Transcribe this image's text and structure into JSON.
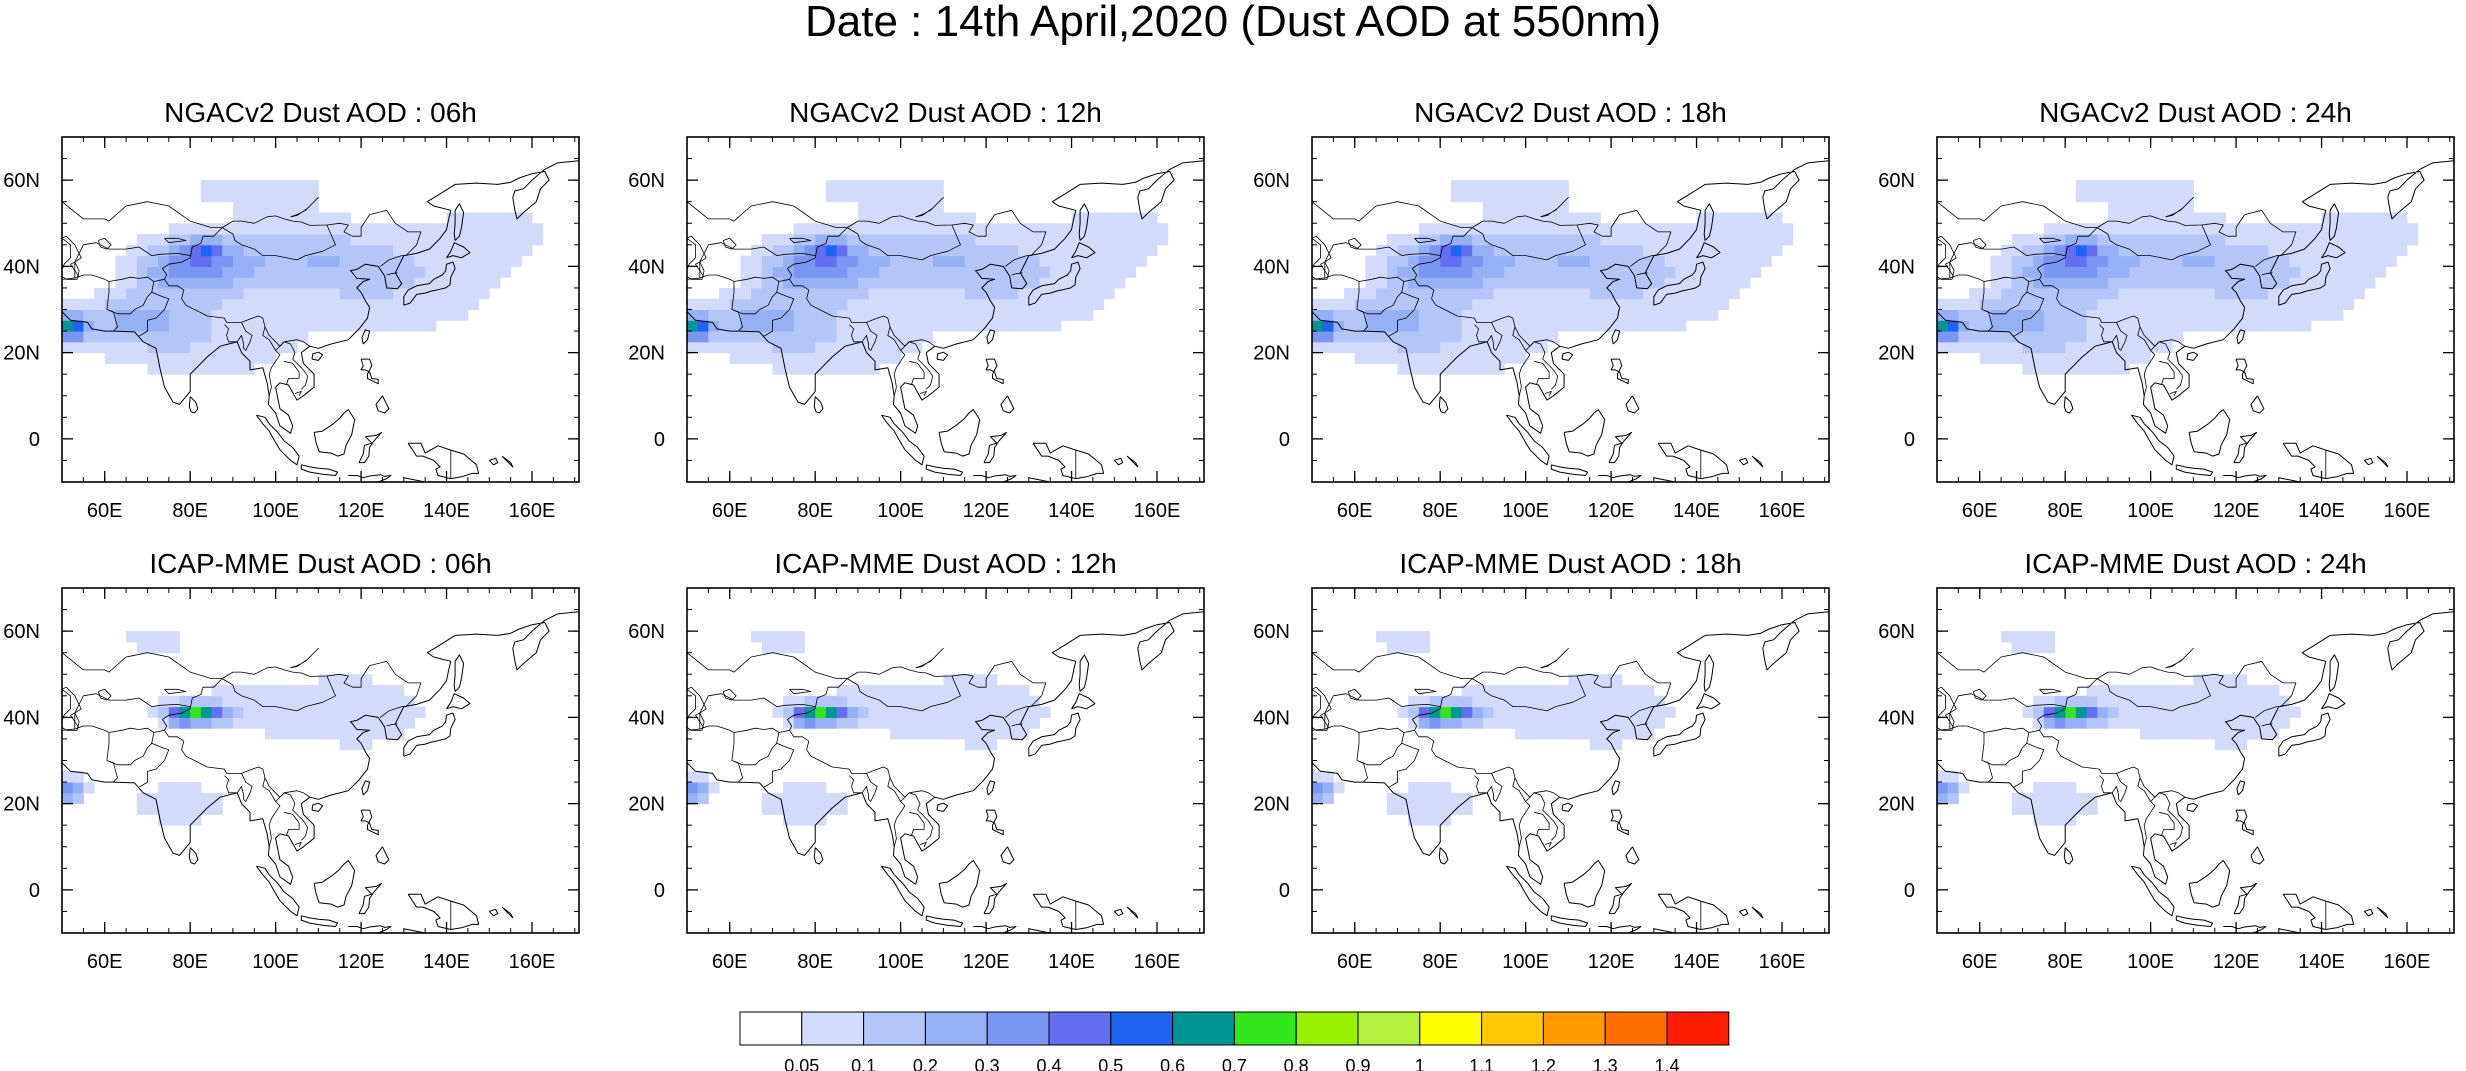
{
  "title": "Date : 14th April,2020 (Dust AOD at 550nm)",
  "panels": [
    {
      "title": "NGACv2 Dust AOD : 06h",
      "model": "NGACv2"
    },
    {
      "title": "NGACv2 Dust AOD : 12h",
      "model": "NGACv2"
    },
    {
      "title": "NGACv2 Dust AOD : 18h",
      "model": "NGACv2"
    },
    {
      "title": "NGACv2 Dust AOD : 24h",
      "model": "NGACv2"
    },
    {
      "title": "ICAP-MME Dust AOD : 06h",
      "model": "ICAP"
    },
    {
      "title": "ICAP-MME Dust AOD : 12h",
      "model": "ICAP"
    },
    {
      "title": "ICAP-MME Dust AOD : 18h",
      "model": "ICAP"
    },
    {
      "title": "ICAP-MME Dust AOD : 24h",
      "model": "ICAP"
    }
  ],
  "map": {
    "lon_range": [
      50,
      171
    ],
    "lat_range": [
      -10,
      70
    ],
    "lon_ticks": [
      {
        "value": 60,
        "label": "60E"
      },
      {
        "value": 80,
        "label": "80E"
      },
      {
        "value": 100,
        "label": "100E"
      },
      {
        "value": 120,
        "label": "120E"
      },
      {
        "value": 140,
        "label": "140E"
      },
      {
        "value": 160,
        "label": "160E"
      }
    ],
    "lat_ticks": [
      {
        "value": 0,
        "label": "0"
      },
      {
        "value": 20,
        "label": "20N"
      },
      {
        "value": 40,
        "label": "40N"
      },
      {
        "value": 60,
        "label": "60N"
      }
    ]
  },
  "colorbar": {
    "labels": [
      "0.05",
      "0.1",
      "0.2",
      "0.3",
      "0.4",
      "0.5",
      "0.6",
      "0.7",
      "0.8",
      "0.9",
      "1",
      "1.1",
      "1.2",
      "1.3",
      "1.4"
    ],
    "colors": [
      "#ffffff",
      "#d2dcfa",
      "#b4c6f8",
      "#96b0f5",
      "#7896f2",
      "#646ef0",
      "#1e64f0",
      "#009696",
      "#32e61e",
      "#96f000",
      "#b4f03c",
      "#ffff00",
      "#ffc800",
      "#ff9b00",
      "#ff6e00",
      "#ff1e00"
    ]
  }
}
